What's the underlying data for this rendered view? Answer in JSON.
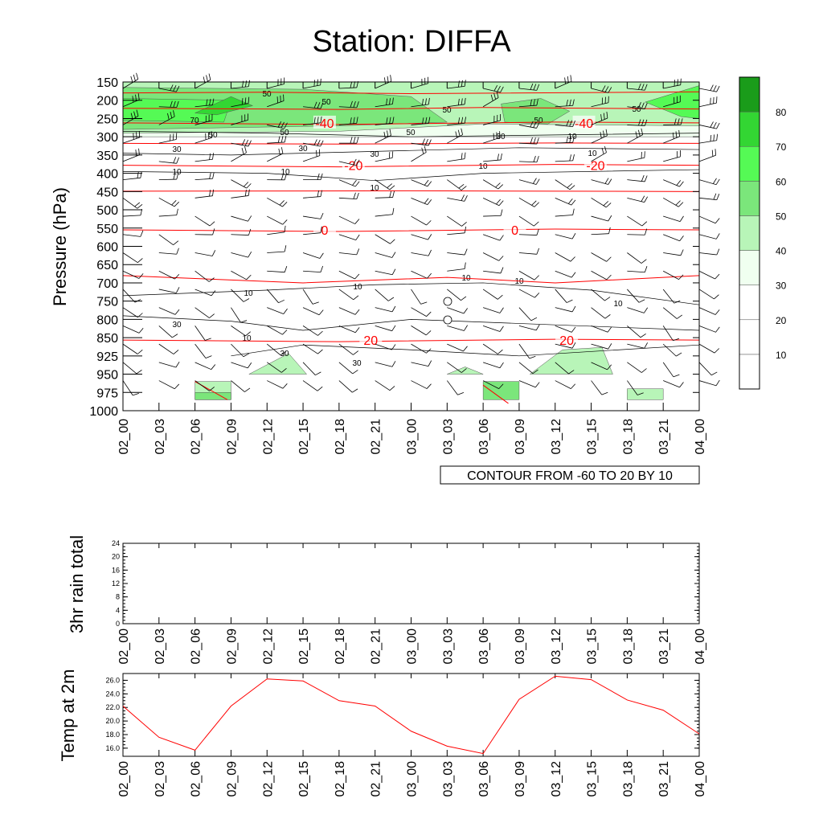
{
  "title": "Station: DIFFA",
  "colors": {
    "temperature": "#ff0000",
    "wind_fill": [
      "#ffffff",
      "#ffffff",
      "#ffffff",
      "#f0fff0",
      "#b8f5b8",
      "#7be67b",
      "#55fa55",
      "#33d633",
      "#1a9c1a"
    ]
  },
  "time_labels": [
    "02_00",
    "02_03",
    "02_06",
    "02_09",
    "02_12",
    "02_15",
    "02_18",
    "02_21",
    "03_00",
    "03_03",
    "03_06",
    "03_09",
    "03_12",
    "03_15",
    "03_18",
    "03_21",
    "04_00"
  ],
  "chart_data": [
    {
      "type": "heatmap",
      "name": "upper-air cross section",
      "ylabel": "Pressure (hPa)",
      "pressure_levels": [
        150,
        200,
        250,
        300,
        350,
        400,
        450,
        500,
        550,
        600,
        650,
        700,
        750,
        800,
        850,
        925,
        950,
        975,
        1000
      ],
      "info_label": "CONTOUR FROM -60 TO 20 BY 10",
      "colorbar": {
        "levels": [
          10,
          20,
          30,
          40,
          50,
          60,
          70,
          80
        ],
        "labels": [
          "10",
          "20",
          "30",
          "40",
          "50",
          "60",
          "70",
          "80"
        ]
      },
      "temperature_contours": [
        {
          "value": -40,
          "label": "-40",
          "level": 262
        },
        {
          "value": -20,
          "label": "-20",
          "level": 378
        },
        {
          "value": 0,
          "label": "0",
          "level": 555
        },
        {
          "value": 20,
          "label": "20",
          "level": 860
        }
      ],
      "wind_speed_labels": [
        "50",
        "50",
        "50",
        "50",
        "70",
        "50",
        "50",
        "50",
        "50",
        "30",
        "30",
        "30",
        "30",
        "10",
        "10",
        "10",
        "10",
        "10",
        "10",
        "10",
        "10",
        "10",
        "10",
        "10",
        "30",
        "10",
        "30",
        "30"
      ]
    },
    {
      "type": "line",
      "name": "3hr rain total",
      "ylabel": "3hr rain total",
      "ylim": [
        0,
        24
      ],
      "yticks": [
        0,
        4,
        8,
        12,
        16,
        20,
        24
      ],
      "ytick_labels": [
        "0",
        "4",
        "8",
        "12",
        "16",
        "20",
        "24"
      ],
      "values": [
        0,
        0,
        0,
        0,
        0,
        0,
        0,
        0,
        0,
        0,
        0,
        0,
        0,
        0,
        0,
        0,
        0
      ]
    },
    {
      "type": "line",
      "name": "Temp at 2m",
      "ylabel": "Temp at 2m",
      "ylim": [
        14.8,
        27.0
      ],
      "yticks": [
        16,
        18,
        20,
        22,
        24,
        26
      ],
      "ytick_labels": [
        "16.0",
        "18.0",
        "20.0",
        "22.0",
        "24.0",
        "26.0"
      ],
      "values": [
        22.2,
        17.6,
        15.7,
        22.2,
        26.2,
        25.9,
        23.0,
        22.2,
        18.5,
        16.3,
        15.2,
        23.2,
        26.6,
        26.1,
        23.1,
        21.6,
        18.1
      ]
    }
  ]
}
